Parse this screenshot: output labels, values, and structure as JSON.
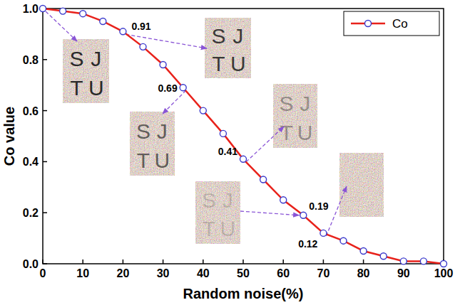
{
  "chart_data": {
    "type": "line",
    "x_label": "Random noise(%)",
    "y_label": "Co value",
    "x": [
      0,
      5,
      10,
      15,
      20,
      25,
      30,
      35,
      40,
      45,
      50,
      55,
      60,
      65,
      70,
      75,
      80,
      85,
      90,
      95,
      100
    ],
    "series": [
      {
        "name": "Co",
        "color": "#e8221b",
        "marker": "circle",
        "line_style": "solid",
        "values": [
          1.0,
          0.99,
          0.98,
          0.95,
          0.91,
          0.85,
          0.78,
          0.69,
          0.6,
          0.51,
          0.41,
          0.33,
          0.25,
          0.19,
          0.12,
          0.09,
          0.05,
          0.03,
          0.01,
          0.01,
          0.0
        ]
      }
    ],
    "xlim": [
      0,
      100
    ],
    "xticks": [
      0,
      10,
      20,
      30,
      40,
      50,
      60,
      70,
      80,
      90,
      100
    ],
    "ylim": [
      0,
      1
    ],
    "yticks": [
      {
        "value": 0,
        "label": "0.0"
      },
      0.2,
      0.4,
      0.6,
      0.8,
      {
        "value": 1,
        "label": "1.0"
      }
    ],
    "legend": "top-right",
    "annotations": [
      {
        "x": 20,
        "text": "0.91"
      },
      {
        "x": 35,
        "text": "0.69"
      },
      {
        "x": 50,
        "text": "0.41"
      },
      {
        "x": 65,
        "text": "0.19"
      },
      {
        "x": 70,
        "text": "0.12"
      }
    ],
    "insets": [
      {
        "x": 0,
        "letters": [
          "S",
          "J",
          "T",
          "U"
        ]
      },
      {
        "x": 20,
        "letters": [
          "S",
          "J",
          "T",
          "U"
        ]
      },
      {
        "x": 35,
        "letters": [
          "S",
          "J",
          "T",
          "U"
        ]
      },
      {
        "x": 50,
        "letters": [
          "S",
          "J",
          "T",
          "U"
        ]
      },
      {
        "x": 65,
        "letters": [
          "S",
          "J",
          "T",
          "U"
        ]
      },
      {
        "x": 70,
        "letters": []
      }
    ]
  }
}
